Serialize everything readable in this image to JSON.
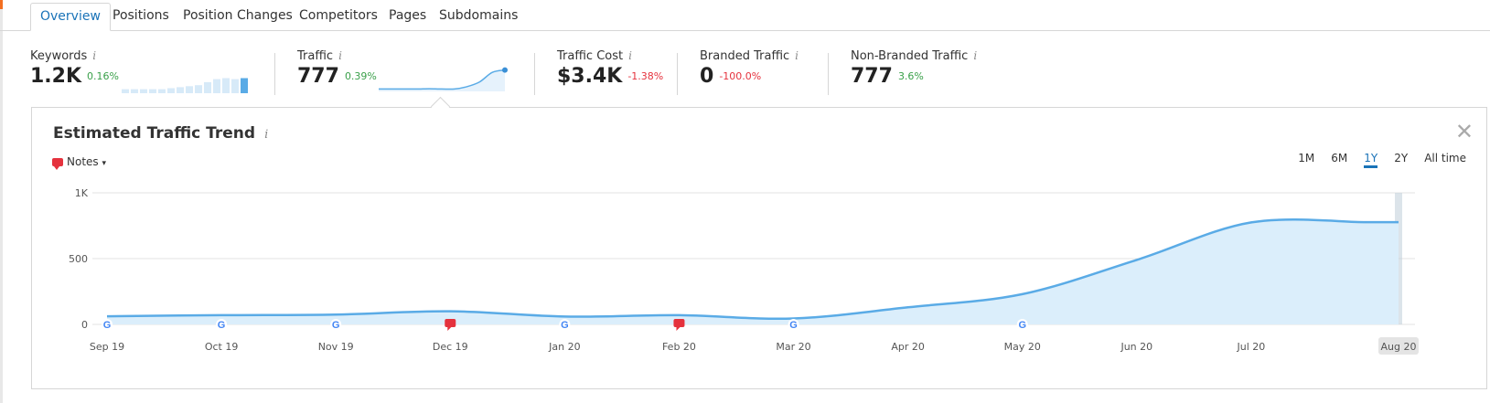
{
  "tabs": [
    {
      "label": "Overview",
      "active": true
    },
    {
      "label": "Positions"
    },
    {
      "label": "Position Changes"
    },
    {
      "label": "Competitors"
    },
    {
      "label": "Pages"
    },
    {
      "label": "Subdomains"
    }
  ],
  "metrics": {
    "keywords": {
      "label": "Keywords",
      "value": "1.2K",
      "delta": "0.16%",
      "sparkline_bars": [
        0.2,
        0.2,
        0.2,
        0.2,
        0.2,
        0.25,
        0.3,
        0.35,
        0.4,
        0.55,
        0.7,
        0.75,
        0.7,
        0.75
      ]
    },
    "traffic": {
      "label": "Traffic",
      "value": "777",
      "delta": "0.39%",
      "sparkline": [
        0.1,
        0.1,
        0.1,
        0.1,
        0.11,
        0.1,
        0.1,
        0.2,
        0.4,
        0.8,
        0.9
      ]
    },
    "traffic_cost": {
      "label": "Traffic Cost",
      "value": "$3.4K",
      "delta": "-1.38%"
    },
    "branded_traffic": {
      "label": "Branded Traffic",
      "value": "0",
      "delta": "-100.0%"
    },
    "non_branded_traffic": {
      "label": "Non-Branded Traffic",
      "value": "777",
      "delta": "3.6%"
    }
  },
  "info_glyph": "i",
  "panel": {
    "title": "Estimated Traffic Trend",
    "close_glyph": "✕",
    "notes_label": "Notes",
    "ranges": [
      {
        "label": "1M"
      },
      {
        "label": "6M"
      },
      {
        "label": "1Y",
        "active": true
      },
      {
        "label": "2Y"
      },
      {
        "label": "All time"
      }
    ]
  },
  "colors": {
    "line": "#5aabe6",
    "fill": "#dbeefb",
    "google_blue": "#4285f4",
    "google_red": "#ea4335",
    "google_yellow": "#fbbc05",
    "google_green": "#34a853",
    "note_red": "#e5323d"
  },
  "chart_data": {
    "type": "area",
    "x": [
      "Sep 19",
      "Oct 19",
      "Nov 19",
      "Dec 19",
      "Jan 20",
      "Feb 20",
      "Mar 20",
      "Apr 20",
      "May 20",
      "Jun 20",
      "Jul 20",
      "Aug 20"
    ],
    "series": [
      {
        "values": [
          62,
          70,
          75,
          100,
          60,
          70,
          45,
          130,
          230,
          490,
          775,
          777
        ]
      }
    ],
    "ylim": [
      0,
      1000
    ],
    "yticks": [
      {
        "value": 0,
        "label": "0"
      },
      {
        "value": 500,
        "label": "500"
      },
      {
        "value": 1000,
        "label": "1K"
      }
    ],
    "highlighted_x": "Aug 20",
    "markers": [
      {
        "x": "Sep 19",
        "kind": "google"
      },
      {
        "x": "Oct 19",
        "kind": "google"
      },
      {
        "x": "Nov 19",
        "kind": "google"
      },
      {
        "x": "Dec 19",
        "kind": "note"
      },
      {
        "x": "Jan 20",
        "kind": "google"
      },
      {
        "x": "Feb 20",
        "kind": "note"
      },
      {
        "x": "Mar 20",
        "kind": "google"
      },
      {
        "x": "May 20",
        "kind": "google"
      }
    ],
    "marker_glyph": "G"
  }
}
